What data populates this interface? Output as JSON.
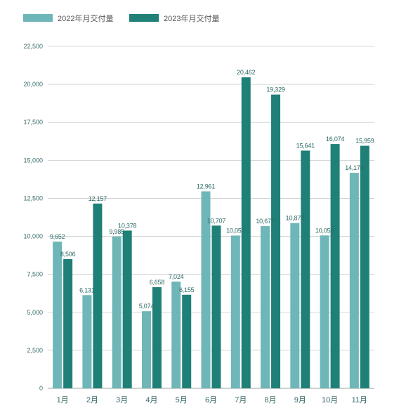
{
  "chart_data": {
    "type": "bar",
    "categories": [
      "1月",
      "2月",
      "3月",
      "4月",
      "5月",
      "6月",
      "7月",
      "8月",
      "9月",
      "10月",
      "11月"
    ],
    "series": [
      {
        "name": "2022年月交付量",
        "color": "#6fb6b8",
        "values": [
          9652,
          6131,
          9985,
          5074,
          7024,
          12961,
          10052,
          10677,
          10878,
          10059,
          14178
        ],
        "labels": [
          "9,652",
          "6,131",
          "9,985",
          "5,074",
          "7,024",
          "12,961",
          "10,052",
          "10,677",
          "10,878",
          "10,059",
          "14,178"
        ]
      },
      {
        "name": "2023年月交付量",
        "color": "#1f8078",
        "values": [
          8506,
          12157,
          10378,
          6658,
          6155,
          10707,
          20462,
          19329,
          15641,
          16074,
          15959
        ],
        "labels": [
          "8,506",
          "12,157",
          "10,378",
          "6,658",
          "6,155",
          "10,707",
          "20,462",
          "19,329",
          "15,641",
          "16,074",
          "15,959"
        ]
      }
    ],
    "ylim": [
      0,
      22500
    ],
    "yticks": [
      0,
      2500,
      5000,
      7500,
      10000,
      12500,
      15000,
      17500,
      20000,
      22500
    ],
    "ytick_labels": [
      "0",
      "2,500",
      "5,000",
      "7,500",
      "10,000",
      "12,500",
      "15,000",
      "17,500",
      "20,000",
      "22,500"
    ],
    "grid": true,
    "legend_position": "top-left",
    "title": "",
    "xlabel": "",
    "ylabel": ""
  }
}
